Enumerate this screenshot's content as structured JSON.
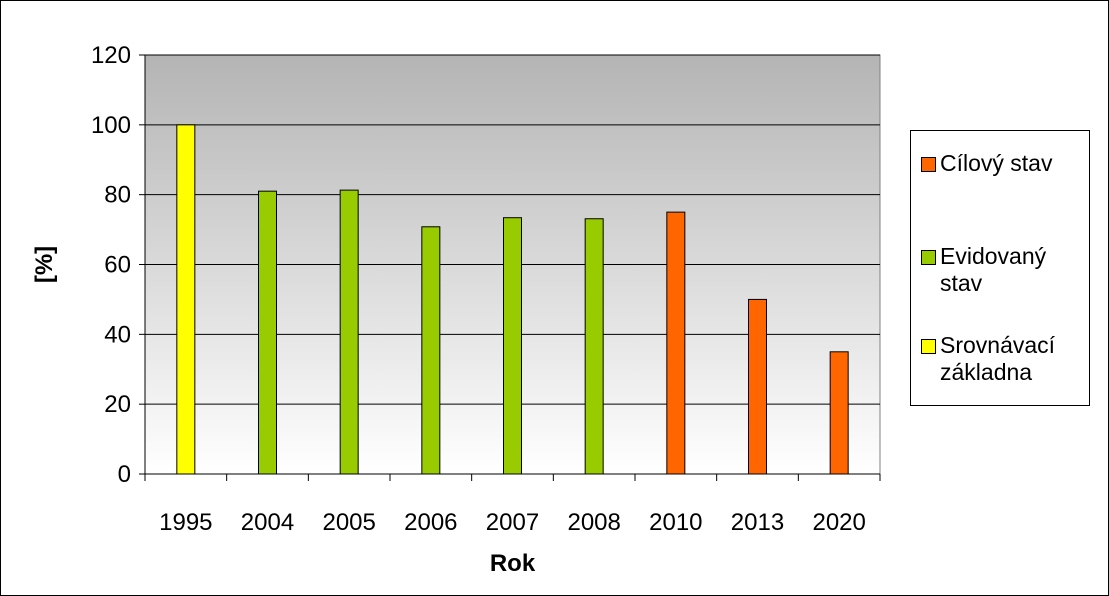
{
  "colors": {
    "plot_top": "#b4b4b4",
    "plot_bottom": "#ffffff",
    "Cílový stav": "#ff6600",
    "Evidovaný stav": "#99cc00",
    "Srovnávací základna": "#ffff00"
  },
  "chart_data": {
    "type": "bar",
    "xlabel": "Rok",
    "ylabel": "[%]",
    "ylim": [
      0,
      120
    ],
    "yticks": [
      0,
      20,
      40,
      60,
      80,
      100,
      120
    ],
    "grid": true,
    "legend_position": "right",
    "categories": [
      "1995",
      "2004",
      "2005",
      "2006",
      "2007",
      "2008",
      "2010",
      "2013",
      "2020"
    ],
    "values": [
      100,
      81,
      81.3,
      70.8,
      73.4,
      73.1,
      75,
      50,
      35
    ],
    "point_series": [
      "Srovnávací základna",
      "Evidovaný stav",
      "Evidovaný stav",
      "Evidovaný stav",
      "Evidovaný stav",
      "Evidovaný stav",
      "Cílový stav",
      "Cílový stav",
      "Cílový stav"
    ],
    "series": [
      {
        "name": "Cílový stav",
        "color": "#ff6600"
      },
      {
        "name": "Evidovaný stav",
        "color": "#99cc00"
      },
      {
        "name": "Srovnávací základna",
        "color": "#ffff00"
      }
    ]
  }
}
